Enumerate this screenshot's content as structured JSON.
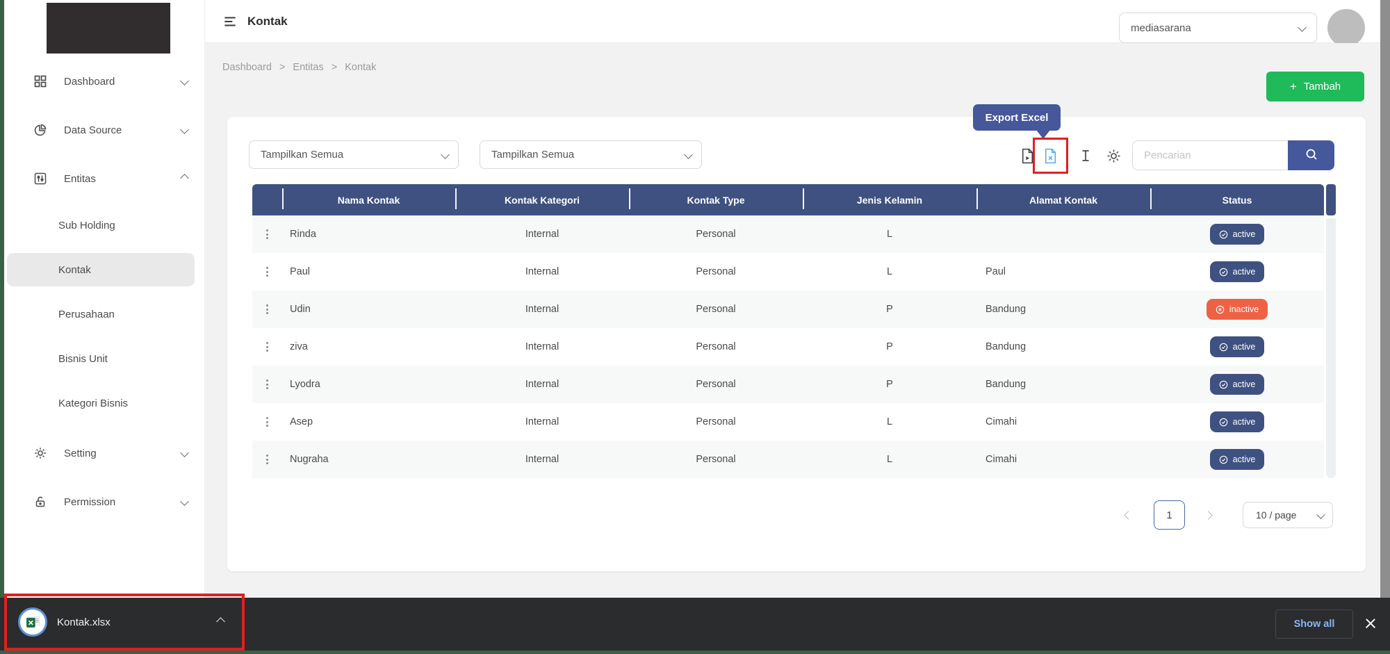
{
  "sidebar": {
    "menu": [
      {
        "label": "Dashboard"
      },
      {
        "label": "Data Source"
      },
      {
        "label": "Entitas"
      }
    ],
    "submenu": [
      "Sub Holding",
      "Kontak",
      "Perusahaan",
      "Bisnis Unit",
      "Kategori Bisnis"
    ],
    "active_submenu": "Kontak",
    "menu_bottom": [
      {
        "label": "Setting"
      },
      {
        "label": "Permission"
      }
    ]
  },
  "topbar": {
    "title": "Kontak",
    "workspace": "mediasarana"
  },
  "breadcrumb": {
    "items": [
      "Dashboard",
      "Entitas",
      "Kontak"
    ],
    "separator": ">"
  },
  "actions": {
    "add_plus": "+",
    "add_button": "Tambah",
    "tooltip": "Export Excel",
    "search_placeholder": "Pencarian"
  },
  "filters": {
    "filter1": "Tampilkan Semua",
    "filter2": "Tampilkan Semua"
  },
  "table": {
    "columns": [
      "Nama Kontak",
      "Kontak Kategori",
      "Kontak Type",
      "Jenis Kelamin",
      "Alamat Kontak",
      "Status"
    ],
    "rows": [
      {
        "nama": "Rinda",
        "kategori": "Internal",
        "type": "Personal",
        "jenis_kelamin": "L",
        "alamat": "",
        "status": "active"
      },
      {
        "nama": "Paul",
        "kategori": "Internal",
        "type": "Personal",
        "jenis_kelamin": "L",
        "alamat": "Paul",
        "status": "active"
      },
      {
        "nama": "Udin",
        "kategori": "Internal",
        "type": "Personal",
        "jenis_kelamin": "P",
        "alamat": "Bandung",
        "status": "inactive"
      },
      {
        "nama": "ziva",
        "kategori": "Internal",
        "type": "Personal",
        "jenis_kelamin": "P",
        "alamat": "Bandung",
        "status": "active"
      },
      {
        "nama": "Lyodra",
        "kategori": "Internal",
        "type": "Personal",
        "jenis_kelamin": "P",
        "alamat": "Bandung",
        "status": "active"
      },
      {
        "nama": "Asep",
        "kategori": "Internal",
        "type": "Personal",
        "jenis_kelamin": "L",
        "alamat": "Cimahi",
        "status": "active"
      },
      {
        "nama": "Nugraha",
        "kategori": "Internal",
        "type": "Personal",
        "jenis_kelamin": "L",
        "alamat": "Cimahi",
        "status": "active"
      }
    ],
    "status_labels": {
      "active": "active",
      "inactive": "inactive"
    }
  },
  "pagination": {
    "current": "1",
    "page_size": "10 / page"
  },
  "download_bar": {
    "filename": "Kontak.xlsx",
    "show_all": "Show all"
  },
  "colors": {
    "primary": "#3e5180",
    "green": "#1fba5a",
    "inactive": "#ed6245",
    "annotation_red": "#e11f1f",
    "excel_blue": "#55a9ea"
  }
}
